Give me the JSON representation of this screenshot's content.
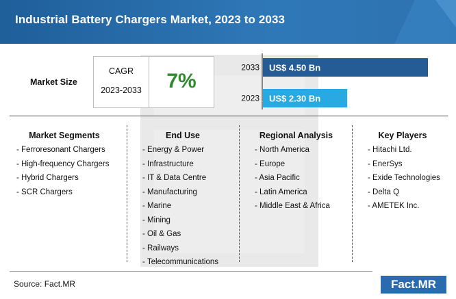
{
  "header": {
    "title": "Industrial Battery Chargers Market, 2023 to 2033"
  },
  "market_size": {
    "label": "Market Size",
    "cagr_label": "CAGR",
    "cagr_period": "2023-2033",
    "cagr_value": "7%"
  },
  "chart_data": {
    "type": "bar",
    "orientation": "horizontal",
    "categories": [
      "2033",
      "2023"
    ],
    "values": [
      4.5,
      2.3
    ],
    "value_labels": [
      "US$ 4.50 Bn",
      "US$ 2.30 Bn"
    ],
    "unit": "US$ Bn",
    "colors": [
      "#255c96",
      "#29a9e1"
    ]
  },
  "sections": [
    {
      "title": "Market Segments",
      "items": [
        "- Ferroresonant Chargers",
        "- High-frequency Chargers",
        "- Hybrid Chargers",
        "- SCR Chargers"
      ]
    },
    {
      "title": "End Use",
      "items": [
        "- Energy & Power",
        "- Infrastructure",
        "- IT & Data Centre",
        "- Manufacturing",
        "- Marine",
        "- Mining",
        "- Oil & Gas",
        "- Railways",
        "- Telecommunications"
      ]
    },
    {
      "title": "Regional Analysis",
      "items": [
        "- North America",
        "- Europe",
        "- Asia Pacific",
        "- Latin America",
        "- Middle East & Africa"
      ]
    },
    {
      "title": "Key Players",
      "items": [
        "- Hitachi Ltd.",
        "- EnerSys",
        "- Exide Technologies",
        "- Delta Q",
        "- AMETEK Inc."
      ]
    }
  ],
  "footer": {
    "source": "Source: Fact.MR",
    "logo": "Fact.MR"
  }
}
